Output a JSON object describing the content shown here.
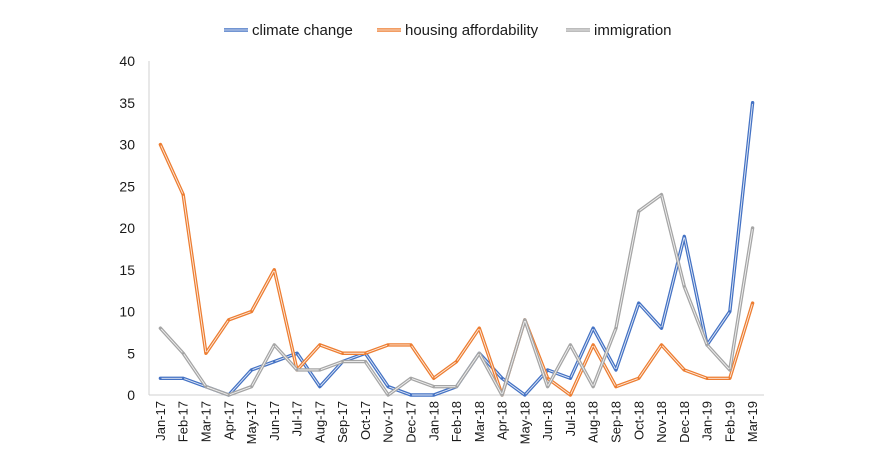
{
  "chart_data": {
    "type": "line",
    "title": "",
    "xlabel": "",
    "ylabel": "",
    "ylim": [
      0,
      40
    ],
    "yticks": [
      0,
      5,
      10,
      15,
      20,
      25,
      30,
      35,
      40
    ],
    "grid": false,
    "legend_position": "top",
    "categories": [
      "Jan-17",
      "Feb-17",
      "Mar-17",
      "Apr-17",
      "May-17",
      "Jun-17",
      "Jul-17",
      "Aug-17",
      "Sep-17",
      "Oct-17",
      "Nov-17",
      "Dec-17",
      "Jan-18",
      "Feb-18",
      "Mar-18",
      "Apr-18",
      "May-18",
      "Jun-18",
      "Jul-18",
      "Aug-18",
      "Sep-18",
      "Oct-18",
      "Nov-18",
      "Dec-18",
      "Jan-19",
      "Feb-19",
      "Mar-19"
    ],
    "series": [
      {
        "name": "climate change",
        "color": "#4472C4",
        "values": [
          2,
          2,
          1,
          0,
          3,
          4,
          5,
          1,
          4,
          5,
          1,
          0,
          0,
          1,
          5,
          2,
          0,
          3,
          2,
          8,
          3,
          11,
          8,
          19,
          6,
          10,
          35
        ]
      },
      {
        "name": "housing affordability",
        "color": "#ED7D31",
        "values": [
          30,
          24,
          5,
          9,
          10,
          15,
          3,
          6,
          5,
          5,
          6,
          6,
          2,
          4,
          8,
          0,
          9,
          2,
          0,
          6,
          1,
          2,
          6,
          3,
          2,
          2,
          11
        ]
      },
      {
        "name": "immigration",
        "color": "#A5A5A5",
        "values": [
          8,
          5,
          1,
          0,
          1,
          6,
          3,
          3,
          4,
          4,
          0,
          2,
          1,
          1,
          5,
          0,
          9,
          1,
          6,
          1,
          8,
          22,
          24,
          13,
          6,
          3,
          20
        ]
      }
    ]
  }
}
